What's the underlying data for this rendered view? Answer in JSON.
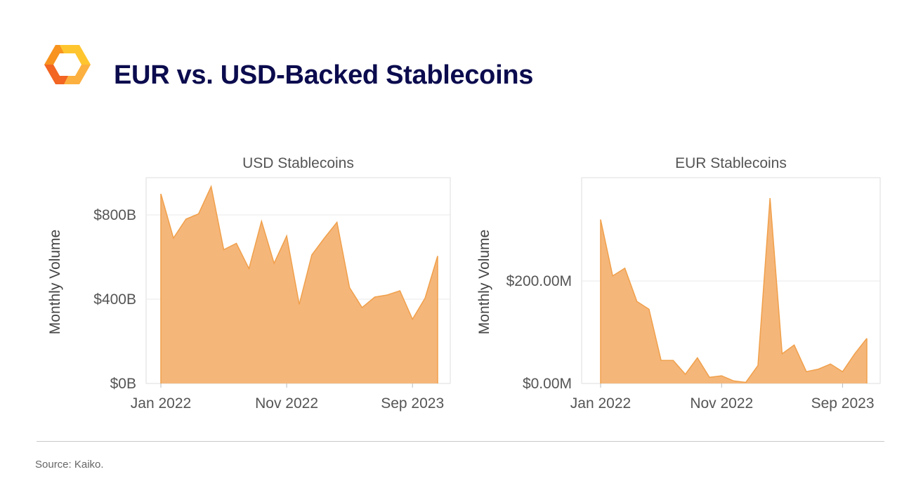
{
  "page": {
    "title": "EUR vs. USD-Backed Stablecoins",
    "source": "Source: Kaiko."
  },
  "logo": {
    "icon": "orange-hexagon-logo-icon",
    "colors": [
      "#f7931e",
      "#ffb829",
      "#f26522"
    ]
  },
  "colors": {
    "area_fill": "#f5b67a",
    "area_line": "#f0a04b",
    "grid": "#e9e9e9",
    "frame": "#dedede"
  },
  "chart_data": [
    {
      "type": "area",
      "title": "USD Stablecoins",
      "ylabel": "Monthly Volume",
      "xlabel": "",
      "ylim": [
        0,
        960
      ],
      "yticks": [
        0,
        400,
        800
      ],
      "ytick_labels": [
        "$0B",
        "$400B",
        "$800B"
      ],
      "x_tick_indices": [
        0,
        10,
        20
      ],
      "xtick_labels": [
        "Jan 2022",
        "Nov 2022",
        "Sep 2023"
      ],
      "units": "billions USD",
      "values": [
        900,
        690,
        780,
        805,
        935,
        635,
        665,
        545,
        770,
        570,
        700,
        375,
        610,
        690,
        765,
        455,
        360,
        410,
        420,
        440,
        305,
        405,
        605
      ],
      "grid": true,
      "legend": "none"
    },
    {
      "type": "area",
      "title": "EUR Stablecoins",
      "ylabel": "Monthly Volume",
      "xlabel": "",
      "ylim": [
        0,
        395
      ],
      "yticks": [
        0,
        200
      ],
      "ytick_labels": [
        "$0.00M",
        "$200.00M"
      ],
      "x_tick_indices": [
        0,
        10,
        20
      ],
      "xtick_labels": [
        "Jan 2022",
        "Nov 2022",
        "Sep 2023"
      ],
      "units": "millions EUR",
      "values": [
        320,
        210,
        225,
        160,
        145,
        45,
        45,
        18,
        50,
        12,
        15,
        5,
        2,
        35,
        362,
        58,
        75,
        23,
        28,
        38,
        23,
        58,
        88
      ],
      "grid": true,
      "legend": "none"
    }
  ]
}
